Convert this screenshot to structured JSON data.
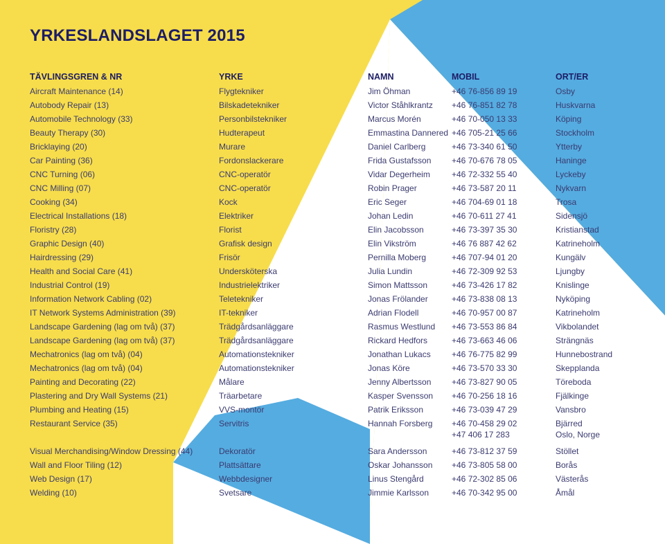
{
  "title": "YRKESLANDSLAGET 2015",
  "colors": {
    "yellow": "#f7dd4b",
    "blue": "#55ace0",
    "white": "#ffffff",
    "text": "#3a3a70",
    "heading": "#1d1d66"
  },
  "headers": {
    "skill": "TÄVLINGSGREN & NR",
    "profession": "YRKE",
    "name": "NAMN",
    "mobile": "MOBIL",
    "location": "ORT/ER"
  },
  "rows": [
    {
      "skill": "Aircraft Maintenance (14)",
      "profession": "Flygtekniker",
      "name": "Jim Öhman",
      "mobile": "+46 76-856 89 19",
      "location": "Osby"
    },
    {
      "skill": "Autobody Repair (13)",
      "profession": "Bilskadetekniker",
      "name": "Victor Ståhlkrantz",
      "mobile": "+46 76-851 82 78",
      "location": "Huskvarna"
    },
    {
      "skill": "Automobile Technology (33)",
      "profession": "Personbilstekniker",
      "name": "Marcus Morén",
      "mobile": "+46 70-050 13 33",
      "location": "Köping"
    },
    {
      "skill": "Beauty Therapy (30)",
      "profession": "Hudterapeut",
      "name": "Emmastina Dannered",
      "mobile": "+46 705-21 25 66",
      "location": "Stockholm"
    },
    {
      "skill": "Bricklaying (20)",
      "profession": "Murare",
      "name": "Daniel Carlberg",
      "mobile": "+46 73-340 61 50",
      "location": "Ytterby"
    },
    {
      "skill": "Car Painting (36)",
      "profession": "Fordonslackerare",
      "name": "Frida Gustafsson",
      "mobile": "+46 70-676 78 05",
      "location": "Haninge"
    },
    {
      "skill": "CNC Turning (06)",
      "profession": "CNC-operatör",
      "name": "Vidar Degerheim",
      "mobile": "+46 72-332 55 40",
      "location": "Lyckeby"
    },
    {
      "skill": "CNC Milling (07)",
      "profession": "CNC-operatör",
      "name": "Robin Prager",
      "mobile": "+46 73-587 20 11",
      "location": "Nykvarn"
    },
    {
      "skill": "Cooking (34)",
      "profession": "Kock",
      "name": "Eric Seger",
      "mobile": "+46 704-69 01 18",
      "location": "Trosa"
    },
    {
      "skill": "Electrical Installations (18)",
      "profession": "Elektriker",
      "name": "Johan Ledin",
      "mobile": "+46 70-611 27 41",
      "location": "Sidensjö"
    },
    {
      "skill": "Floristry (28)",
      "profession": "Florist",
      "name": "Elin Jacobsson",
      "mobile": "+46 73-397 35 30",
      "location": "Kristianstad"
    },
    {
      "skill": "Graphic Design (40)",
      "profession": "Grafisk design",
      "name": "Elin Vikström",
      "mobile": "+46 76 887 42 62",
      "location": "Katrineholm"
    },
    {
      "skill": "Hairdressing (29)",
      "profession": "Frisör",
      "name": "Pernilla Moberg",
      "mobile": "+46 707-94 01 20",
      "location": "Kungälv"
    },
    {
      "skill": "Health and Social Care (41)",
      "profession": "Undersköterska",
      "name": "Julia Lundin",
      "mobile": "+46 72-309 92 53",
      "location": "Ljungby"
    },
    {
      "skill": "Industrial Control (19)",
      "profession": "Industrielektriker",
      "name": "Simon Mattsson",
      "mobile": "+46 73-426 17 82",
      "location": "Knislinge"
    },
    {
      "skill": "Information Network Cabling (02)",
      "profession": "Teletekniker",
      "name": "Jonas Frölander",
      "mobile": "+46 73-838 08 13",
      "location": "Nyköping"
    },
    {
      "skill": "IT Network Systems Administration (39)",
      "profession": "IT-tekniker",
      "name": "Adrian Flodell",
      "mobile": "+46 70-957 00 87",
      "location": "Katrineholm"
    },
    {
      "skill": "Landscape Gardening (lag om två) (37)",
      "profession": "Trädgårdsanläggare",
      "name": "Rasmus Westlund",
      "mobile": "+46 73-553 86 84",
      "location": "Vikbolandet"
    },
    {
      "skill": "Landscape Gardening (lag om två) (37)",
      "profession": "Trädgårdsanläggare",
      "name": "Rickard Hedfors",
      "mobile": "+46 73-663 46 06",
      "location": "Strängnäs"
    },
    {
      "skill": "Mechatronics (lag om två) (04)",
      "profession": "Automationstekniker",
      "name": "Jonathan Lukacs",
      "mobile": "+46 76-775 82 99",
      "location": "Hunnebostrand"
    },
    {
      "skill": "Mechatronics (lag om två) (04)",
      "profession": "Automationstekniker",
      "name": "Jonas Köre",
      "mobile": "+46 73-570 33 30",
      "location": "Skepplanda"
    },
    {
      "skill": "Painting and Decorating (22)",
      "profession": "Målare",
      "name": "Jenny Albertsson",
      "mobile": "+46 73-827 90 05",
      "location": "Töreboda"
    },
    {
      "skill": "Plastering and Dry Wall Systems (21)",
      "profession": "Träarbetare",
      "name": "Kasper Svensson",
      "mobile": "+46 70-256 18 16",
      "location": "Fjälkinge"
    },
    {
      "skill": "Plumbing and Heating (15)",
      "profession": "VVS-montör",
      "name": "Patrik Eriksson",
      "mobile": "+46 73-039 47 29",
      "location": "Vansbro"
    },
    {
      "skill": "Restaurant Service (35)",
      "profession": "Servitris",
      "name": "Hannah Forsberg",
      "mobile": "+46 70-458 29 02\n+47 406 17 283",
      "location": "Bjärred\nOslo, Norge"
    },
    {
      "skill": "Visual Merchandising/Window Dressing (44)",
      "profession": "Dekoratör",
      "name": "Sara Andersson",
      "mobile": "+46 73-812 37 59",
      "location": "Stöllet"
    },
    {
      "skill": "Wall and Floor Tiling (12)",
      "profession": "Plattsättare",
      "name": "Oskar Johansson",
      "mobile": "+46 73-805 58 00",
      "location": "Borås"
    },
    {
      "skill": "Web Design (17)",
      "profession": "Webbdesigner",
      "name": "Linus Stengård",
      "mobile": "+46 72-302 85 06",
      "location": "Västerås"
    },
    {
      "skill": "Welding (10)",
      "profession": "Svetsare",
      "name": "Jimmie Karlsson",
      "mobile": "+46 70-342 95 00",
      "location": "Åmål"
    }
  ]
}
